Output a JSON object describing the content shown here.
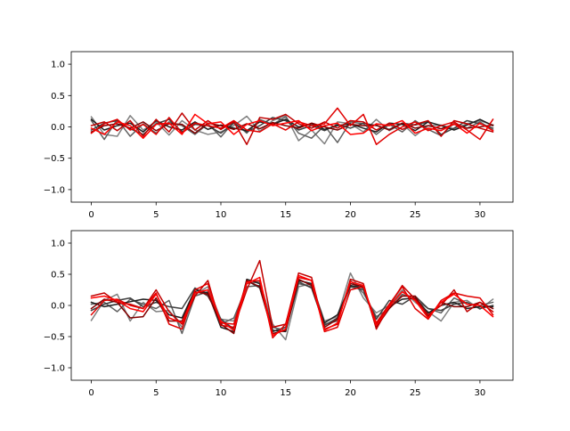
{
  "chart_data": [
    {
      "type": "line",
      "xlim": [
        -1.55,
        32.55
      ],
      "ylim": [
        -1.2,
        1.2
      ],
      "xticks": [
        0,
        5,
        10,
        15,
        20,
        25,
        30
      ],
      "yticks": [
        -1.0,
        -0.5,
        0.0,
        0.5,
        1.0
      ],
      "xtick_labels": [
        "0",
        "5",
        "10",
        "15",
        "20",
        "25",
        "30"
      ],
      "ytick_labels": [
        "−1.0",
        "−0.5",
        "0.0",
        "0.5",
        "1.0"
      ],
      "grid": false,
      "x": [
        0,
        1,
        2,
        3,
        4,
        5,
        6,
        7,
        8,
        9,
        10,
        11,
        12,
        13,
        14,
        15,
        16,
        17,
        18,
        19,
        20,
        21,
        22,
        23,
        24,
        25,
        26,
        27,
        28,
        29,
        30,
        31
      ],
      "series": [
        {
          "color": "#808080",
          "values": [
            0.16,
            -0.12,
            -0.15,
            0.18,
            -0.05,
            0.08,
            -0.13,
            0.1,
            -0.05,
            -0.12,
            -0.08,
            0.02,
            0.17,
            -0.07,
            0.1,
            0.18,
            -0.22,
            -0.05,
            -0.27,
            0.08,
            0.05,
            -0.08,
            0.12,
            -0.06,
            0.05,
            -0.14,
            0.02,
            0.03,
            -0.03,
            0.05,
            0.1,
            0.03
          ]
        },
        {
          "color": "#606060",
          "values": [
            0.1,
            -0.2,
            0.12,
            -0.15,
            0.05,
            -0.1,
            0.08,
            0.02,
            -0.12,
            0.05,
            -0.16,
            0.08,
            -0.1,
            0.12,
            0.04,
            0.16,
            -0.1,
            -0.18,
            0.02,
            -0.25,
            0.08,
            0.05,
            -0.12,
            0.04,
            -0.08,
            0.1,
            -0.04,
            -0.14,
            0.06,
            -0.02,
            0.08,
            -0.05
          ]
        },
        {
          "color": "#404040",
          "values": [
            -0.05,
            0.06,
            0.1,
            -0.03,
            -0.12,
            0.05,
            0.12,
            -0.08,
            0.04,
            0.02,
            -0.1,
            0.06,
            -0.08,
            0.02,
            0.15,
            0.1,
            -0.05,
            0.02,
            -0.06,
            0.04,
            -0.02,
            0.06,
            0.02,
            -0.04,
            0.06,
            0.03,
            0.08,
            -0.12,
            -0.02,
            0.1,
            0.05,
            -0.02
          ]
        },
        {
          "color": "#202020",
          "values": [
            0.12,
            -0.05,
            0.02,
            0.06,
            -0.08,
            0.1,
            0.0,
            -0.05,
            0.08,
            -0.04,
            0.03,
            -0.02,
            -0.06,
            0.08,
            0.04,
            0.12,
            0.0,
            0.05,
            -0.04,
            0.02,
            0.05,
            -0.02,
            -0.08,
            0.06,
            0.04,
            -0.06,
            0.08,
            0.02,
            -0.05,
            0.03,
            0.12,
            0.02
          ]
        },
        {
          "color": "#800000",
          "values": [
            -0.08,
            0.02,
            0.05,
            -0.02,
            0.08,
            -0.06,
            0.05,
            0.04,
            -0.1,
            0.06,
            0.02,
            -0.04,
            0.05,
            -0.03,
            0.07,
            0.02,
            -0.02,
            0.06,
            0.0,
            -0.05,
            0.04,
            0.02,
            0.03,
            -0.05,
            0.06,
            -0.02,
            0.02,
            -0.03,
            0.04,
            -0.02,
            0.0,
            0.03
          ]
        },
        {
          "color": "#c00000",
          "values": [
            0.02,
            0.08,
            -0.06,
            0.1,
            -0.15,
            0.12,
            -0.08,
            0.22,
            -0.05,
            0.1,
            -0.04,
            0.08,
            -0.28,
            0.15,
            0.12,
            0.2,
            0.05,
            -0.02,
            0.08,
            -0.02,
            0.1,
            0.08,
            -0.05,
            0.06,
            -0.04,
            0.04,
            0.1,
            -0.15,
            0.1,
            0.05,
            -0.02,
            -0.08
          ]
        },
        {
          "color": "#e00000",
          "values": [
            -0.1,
            0.05,
            0.12,
            -0.05,
            0.04,
            -0.12,
            0.15,
            -0.1,
            0.06,
            0.02,
            -0.02,
            0.1,
            -0.05,
            -0.08,
            0.05,
            -0.05,
            0.08,
            0.02,
            0.05,
            0.3,
            0.02,
            0.2,
            -0.28,
            -0.12,
            0.0,
            0.08,
            -0.06,
            0.02,
            0.08,
            -0.05,
            -0.2,
            0.12
          ]
        },
        {
          "color": "#ff0000",
          "values": [
            -0.02,
            -0.12,
            0.08,
            0.02,
            -0.18,
            0.04,
            0.06,
            -0.12,
            0.2,
            0.05,
            0.08,
            -0.12,
            0.04,
            0.1,
            0.02,
            0.06,
            0.1,
            -0.06,
            0.02,
            0.06,
            -0.12,
            -0.1,
            0.05,
            0.02,
            0.1,
            -0.1,
            -0.02,
            -0.06,
            0.05,
            -0.1,
            0.06,
            -0.06
          ]
        }
      ]
    },
    {
      "type": "line",
      "xlim": [
        -1.55,
        32.55
      ],
      "ylim": [
        -1.2,
        1.2
      ],
      "xticks": [
        0,
        5,
        10,
        15,
        20,
        25,
        30
      ],
      "yticks": [
        -1.0,
        -0.5,
        0.0,
        0.5,
        1.0
      ],
      "xtick_labels": [
        "0",
        "5",
        "10",
        "15",
        "20",
        "25",
        "30"
      ],
      "ytick_labels": [
        "−1.0",
        "−0.5",
        "0.0",
        "0.5",
        "1.0"
      ],
      "grid": false,
      "x": [
        0,
        1,
        2,
        3,
        4,
        5,
        6,
        7,
        8,
        9,
        10,
        11,
        12,
        13,
        14,
        15,
        16,
        17,
        18,
        19,
        20,
        21,
        22,
        23,
        24,
        25,
        26,
        27,
        28,
        29,
        30,
        31
      ],
      "series": [
        {
          "color": "#808080",
          "values": [
            -0.24,
            0.08,
            0.18,
            -0.25,
            0.05,
            -0.1,
            -0.08,
            -0.35,
            0.18,
            0.3,
            -0.22,
            -0.25,
            0.35,
            0.38,
            -0.3,
            -0.55,
            0.3,
            0.35,
            -0.25,
            -0.18,
            0.52,
            0.12,
            -0.12,
            0.0,
            0.25,
            0.05,
            -0.1,
            -0.25,
            0.05,
            0.08,
            -0.06,
            0.1
          ]
        },
        {
          "color": "#606060",
          "values": [
            0.02,
            0.05,
            -0.1,
            0.1,
            0.02,
            -0.05,
            0.08,
            -0.45,
            0.15,
            0.22,
            -0.3,
            -0.2,
            0.3,
            0.32,
            -0.35,
            -0.4,
            0.35,
            0.3,
            -0.3,
            -0.25,
            0.4,
            0.2,
            -0.18,
            -0.05,
            0.18,
            0.1,
            -0.05,
            -0.12,
            0.12,
            0.02,
            0.0,
            0.05
          ]
        },
        {
          "color": "#404040",
          "values": [
            -0.08,
            0.02,
            0.08,
            0.12,
            -0.02,
            0.05,
            -0.02,
            -0.05,
            0.28,
            0.15,
            -0.22,
            -0.38,
            0.4,
            0.28,
            -0.42,
            -0.35,
            0.38,
            0.28,
            -0.32,
            -0.2,
            0.3,
            0.25,
            -0.22,
            0.08,
            0.02,
            0.15,
            -0.05,
            -0.08,
            0.02,
            0.05,
            -0.05,
            0.0
          ]
        },
        {
          "color": "#202020",
          "values": [
            0.05,
            -0.02,
            0.02,
            0.06,
            0.1,
            0.08,
            -0.15,
            -0.2,
            0.25,
            0.2,
            -0.35,
            -0.42,
            0.42,
            0.35,
            -0.4,
            -0.42,
            0.4,
            0.35,
            -0.28,
            -0.15,
            0.32,
            0.28,
            -0.3,
            -0.02,
            0.1,
            0.12,
            -0.12,
            0.0,
            0.05,
            -0.05,
            -0.02,
            -0.02
          ]
        },
        {
          "color": "#800000",
          "values": [
            -0.05,
            0.1,
            0.05,
            -0.2,
            -0.18,
            0.12,
            -0.25,
            -0.25,
            0.22,
            0.18,
            -0.3,
            -0.45,
            0.4,
            0.3,
            -0.45,
            -0.4,
            0.42,
            0.32,
            -0.35,
            -0.22,
            0.35,
            0.3,
            -0.35,
            -0.05,
            0.15,
            0.15,
            -0.18,
            0.05,
            -0.02,
            -0.02,
            0.05,
            -0.05
          ]
        },
        {
          "color": "#c00000",
          "values": [
            0.15,
            0.2,
            0.05,
            0.02,
            -0.05,
            0.25,
            -0.1,
            -0.3,
            0.15,
            0.4,
            -0.32,
            -0.35,
            0.25,
            0.72,
            -0.35,
            -0.3,
            0.52,
            0.45,
            -0.38,
            -0.3,
            0.42,
            0.35,
            -0.38,
            0.0,
            0.32,
            0.1,
            -0.15,
            0.0,
            0.25,
            -0.1,
            0.05,
            -0.1
          ]
        },
        {
          "color": "#e00000",
          "values": [
            -0.15,
            0.08,
            0.1,
            0.0,
            -0.05,
            0.2,
            -0.3,
            -0.38,
            0.25,
            0.35,
            -0.28,
            -0.3,
            0.38,
            0.4,
            -0.52,
            -0.3,
            0.45,
            0.4,
            -0.42,
            -0.35,
            0.25,
            0.3,
            -0.28,
            0.02,
            0.3,
            -0.05,
            -0.22,
            0.08,
            0.2,
            0.15,
            0.12,
            -0.15
          ]
        },
        {
          "color": "#ff0000",
          "values": [
            0.12,
            0.15,
            0.08,
            -0.05,
            -0.1,
            0.18,
            -0.2,
            -0.28,
            0.2,
            0.25,
            -0.25,
            -0.4,
            0.35,
            0.45,
            -0.48,
            -0.38,
            0.48,
            0.4,
            -0.4,
            -0.28,
            0.38,
            0.32,
            -0.32,
            -0.02,
            0.22,
            0.08,
            -0.2,
            0.05,
            0.18,
            0.02,
            0.0,
            -0.18
          ]
        }
      ]
    }
  ]
}
